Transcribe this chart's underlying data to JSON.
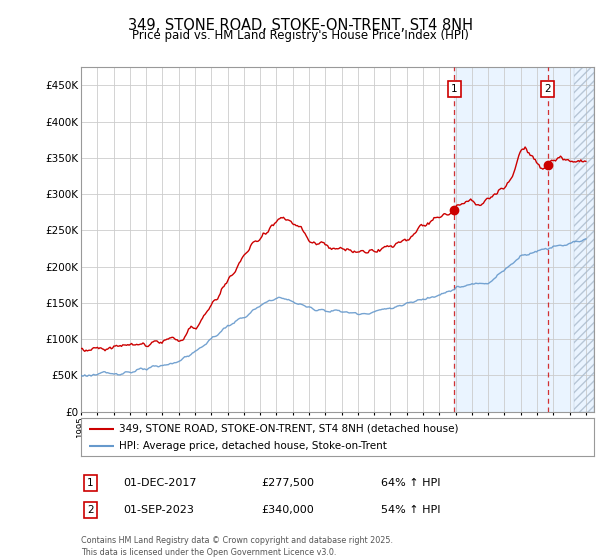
{
  "title": "349, STONE ROAD, STOKE-ON-TRENT, ST4 8NH",
  "subtitle": "Price paid vs. HM Land Registry's House Price Index (HPI)",
  "ylim": [
    0,
    475000
  ],
  "yticks": [
    0,
    50000,
    100000,
    150000,
    200000,
    250000,
    300000,
    350000,
    400000,
    450000
  ],
  "ytick_labels": [
    "£0",
    "£50K",
    "£100K",
    "£150K",
    "£200K",
    "£250K",
    "£300K",
    "£350K",
    "£400K",
    "£450K"
  ],
  "xlim_start": 1995.0,
  "xlim_end": 2026.5,
  "legend1_label": "349, STONE ROAD, STOKE-ON-TRENT, ST4 8NH (detached house)",
  "legend2_label": "HPI: Average price, detached house, Stoke-on-Trent",
  "sale1_date": 2017.92,
  "sale1_price": 277500,
  "sale1_label": "1",
  "sale2_date": 2023.67,
  "sale2_price": 340000,
  "sale2_label": "2",
  "footer": "Contains HM Land Registry data © Crown copyright and database right 2025.\nThis data is licensed under the Open Government Licence v3.0.",
  "red_color": "#cc0000",
  "blue_color": "#6699cc",
  "shade_color": "#ddeeff",
  "grid_color": "#cccccc",
  "bg_color": "#ffffff",
  "hpi_waypoints_x": [
    1995,
    1996,
    1997,
    1998,
    1999,
    2000,
    2001,
    2002,
    2003,
    2004,
    2005,
    2006,
    2007,
    2008,
    2009,
    2010,
    2011,
    2012,
    2013,
    2014,
    2015,
    2016,
    2017,
    2017.92,
    2018,
    2019,
    2020,
    2021,
    2022,
    2023,
    2023.67,
    2024,
    2025,
    2025.5,
    2026
  ],
  "hpi_waypoints_y": [
    50000,
    51000,
    53000,
    55000,
    58000,
    63000,
    70000,
    82000,
    100000,
    118000,
    130000,
    145000,
    158000,
    152000,
    143000,
    140000,
    138000,
    135000,
    138000,
    143000,
    148000,
    155000,
    163000,
    168000,
    170000,
    175000,
    178000,
    195000,
    215000,
    222000,
    225000,
    228000,
    232000,
    235000,
    238000
  ],
  "red_waypoints_x": [
    1995,
    1996,
    1997,
    1998,
    1999,
    2000,
    2001,
    2002,
    2003,
    2004,
    2005,
    2006,
    2007,
    2007.5,
    2008,
    2008.5,
    2009,
    2010,
    2011,
    2012,
    2013,
    2014,
    2015,
    2016,
    2017,
    2017.92,
    2018,
    2019,
    2019.5,
    2020,
    2020.5,
    2021,
    2021.5,
    2022,
    2022.3,
    2022.7,
    2023,
    2023.67,
    2024,
    2024.5,
    2025,
    2025.5,
    2026
  ],
  "red_waypoints_y": [
    85000,
    87000,
    90000,
    91000,
    93000,
    96000,
    100000,
    115000,
    145000,
    180000,
    215000,
    240000,
    263000,
    267000,
    258000,
    252000,
    235000,
    228000,
    223000,
    220000,
    223000,
    228000,
    238000,
    255000,
    268000,
    277500,
    282000,
    290000,
    285000,
    293000,
    298000,
    310000,
    325000,
    358000,
    362000,
    352000,
    345000,
    340000,
    348000,
    352000,
    348000,
    345000,
    347000
  ]
}
